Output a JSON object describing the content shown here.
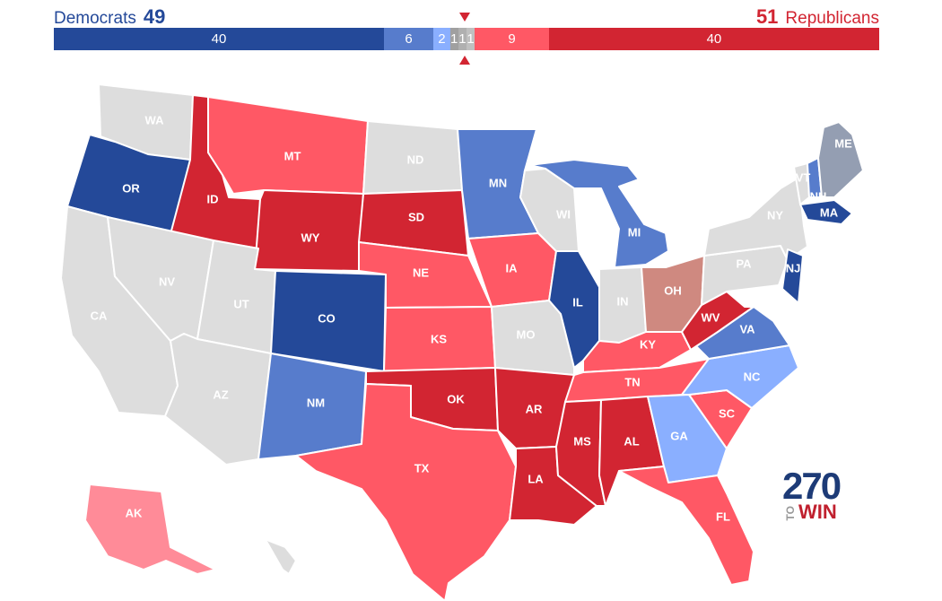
{
  "header": {
    "dem_label": "Democrats",
    "dem_count": "49",
    "rep_count": "51",
    "rep_label": "Republicans"
  },
  "seat_bar": [
    {
      "label": "40",
      "seats": 40,
      "color": "#244999"
    },
    {
      "label": "6",
      "seats": 6,
      "color": "#577ccc"
    },
    {
      "label": "2",
      "seats": 2,
      "color": "#8aafff"
    },
    {
      "label": "1",
      "seats": 1,
      "color": "#a0a0a0"
    },
    {
      "label": "1",
      "seats": 1,
      "color": "#b0b0b0"
    },
    {
      "label": "1",
      "seats": 1,
      "color": "#c0c0c0"
    },
    {
      "label": "9",
      "seats": 9,
      "color": "#ff5865"
    },
    {
      "label": "40",
      "seats": 40,
      "color": "#d22532"
    }
  ],
  "legend_colors": {
    "safe_dem": "#244999",
    "likely_dem": "#577ccc",
    "lean_dem": "#8aafff",
    "tossup": "#dddddd",
    "lean_rep": "#ff8b98",
    "likely_rep": "#ff5865",
    "safe_rep": "#d22532",
    "tilt_rep": "#cf8980",
    "independent": "#949eb2"
  },
  "states": [
    {
      "abbr": "WA",
      "color": "#dddddd"
    },
    {
      "abbr": "OR",
      "color": "#244999"
    },
    {
      "abbr": "CA",
      "color": "#dddddd"
    },
    {
      "abbr": "ID",
      "color": "#d22532"
    },
    {
      "abbr": "NV",
      "color": "#dddddd"
    },
    {
      "abbr": "MT",
      "color": "#ff5865"
    },
    {
      "abbr": "WY",
      "color": "#d22532"
    },
    {
      "abbr": "UT",
      "color": "#dddddd"
    },
    {
      "abbr": "AZ",
      "color": "#dddddd"
    },
    {
      "abbr": "CO",
      "color": "#244999"
    },
    {
      "abbr": "NM",
      "color": "#577ccc"
    },
    {
      "abbr": "ND",
      "color": "#dddddd"
    },
    {
      "abbr": "SD",
      "color": "#d22532"
    },
    {
      "abbr": "NE",
      "color": "#ff5865"
    },
    {
      "abbr": "KS",
      "color": "#ff5865"
    },
    {
      "abbr": "OK",
      "color": "#d22532"
    },
    {
      "abbr": "TX",
      "color": "#ff5865"
    },
    {
      "abbr": "MN",
      "color": "#577ccc"
    },
    {
      "abbr": "IA",
      "color": "#ff5865"
    },
    {
      "abbr": "MO",
      "color": "#dddddd"
    },
    {
      "abbr": "AR",
      "color": "#d22532"
    },
    {
      "abbr": "LA",
      "color": "#d22532"
    },
    {
      "abbr": "WI",
      "color": "#dddddd"
    },
    {
      "abbr": "IL",
      "color": "#244999"
    },
    {
      "abbr": "MI",
      "color": "#577ccc"
    },
    {
      "abbr": "IN",
      "color": "#dddddd"
    },
    {
      "abbr": "OH",
      "color": "#cf8980"
    },
    {
      "abbr": "KY",
      "color": "#ff5865"
    },
    {
      "abbr": "TN",
      "color": "#ff5865"
    },
    {
      "abbr": "MS",
      "color": "#d22532"
    },
    {
      "abbr": "AL",
      "color": "#d22532"
    },
    {
      "abbr": "GA",
      "color": "#8aafff"
    },
    {
      "abbr": "FL",
      "color": "#ff5865"
    },
    {
      "abbr": "SC",
      "color": "#ff5865"
    },
    {
      "abbr": "NC",
      "color": "#8aafff"
    },
    {
      "abbr": "VA",
      "color": "#577ccc"
    },
    {
      "abbr": "WV",
      "color": "#d22532"
    },
    {
      "abbr": "PA",
      "color": "#dddddd"
    },
    {
      "abbr": "NY",
      "color": "#dddddd"
    },
    {
      "abbr": "VT",
      "color": "#dddddd"
    },
    {
      "abbr": "NH",
      "color": "#577ccc"
    },
    {
      "abbr": "ME",
      "color": "#949eb2"
    },
    {
      "abbr": "MA",
      "color": "#244999"
    },
    {
      "abbr": "NJ",
      "color": "#244999"
    },
    {
      "abbr": "AK",
      "color": "#ff8b98"
    },
    {
      "abbr": "HI",
      "color": "#dddddd"
    }
  ],
  "logo": {
    "top": "270",
    "to": "TO",
    "bottom": "WIN"
  }
}
